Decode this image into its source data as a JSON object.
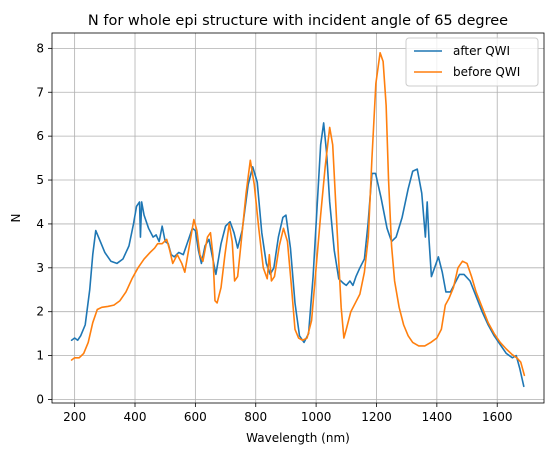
{
  "chart_data": {
    "type": "line",
    "title": "N for whole epi structure with incident angle of 65 degree",
    "xlabel": "Wavelength (nm)",
    "ylabel": "N",
    "xlim": [
      125,
      1755
    ],
    "ylim": [
      -0.08,
      8.35
    ],
    "xticks": [
      200,
      400,
      600,
      800,
      1000,
      1200,
      1400,
      1600
    ],
    "yticks": [
      0,
      1,
      2,
      3,
      4,
      5,
      6,
      7,
      8
    ],
    "grid": true,
    "legend_position": "top-right",
    "colors": {
      "after": "#1f77b4",
      "before": "#ff7f0e"
    },
    "series": [
      {
        "name": "after QWI",
        "color": "#1f77b4",
        "points": [
          [
            190,
            1.35
          ],
          [
            200,
            1.4
          ],
          [
            210,
            1.35
          ],
          [
            220,
            1.45
          ],
          [
            235,
            1.7
          ],
          [
            250,
            2.5
          ],
          [
            260,
            3.3
          ],
          [
            270,
            3.85
          ],
          [
            285,
            3.6
          ],
          [
            300,
            3.35
          ],
          [
            320,
            3.15
          ],
          [
            340,
            3.1
          ],
          [
            360,
            3.2
          ],
          [
            380,
            3.5
          ],
          [
            395,
            4.0
          ],
          [
            405,
            4.4
          ],
          [
            415,
            4.5
          ],
          [
            418,
            3.7
          ],
          [
            422,
            4.5
          ],
          [
            430,
            4.2
          ],
          [
            445,
            3.9
          ],
          [
            460,
            3.7
          ],
          [
            470,
            3.75
          ],
          [
            480,
            3.6
          ],
          [
            490,
            3.95
          ],
          [
            500,
            3.6
          ],
          [
            510,
            3.55
          ],
          [
            520,
            3.3
          ],
          [
            530,
            3.25
          ],
          [
            545,
            3.35
          ],
          [
            560,
            3.3
          ],
          [
            575,
            3.6
          ],
          [
            590,
            3.9
          ],
          [
            600,
            3.85
          ],
          [
            610,
            3.4
          ],
          [
            620,
            3.1
          ],
          [
            632,
            3.5
          ],
          [
            645,
            3.65
          ],
          [
            655,
            3.3
          ],
          [
            668,
            2.85
          ],
          [
            685,
            3.55
          ],
          [
            700,
            3.95
          ],
          [
            715,
            4.05
          ],
          [
            728,
            3.8
          ],
          [
            740,
            3.45
          ],
          [
            755,
            3.85
          ],
          [
            775,
            4.9
          ],
          [
            790,
            5.3
          ],
          [
            805,
            4.95
          ],
          [
            820,
            3.8
          ],
          [
            835,
            3.1
          ],
          [
            848,
            2.85
          ],
          [
            860,
            3.0
          ],
          [
            875,
            3.7
          ],
          [
            890,
            4.15
          ],
          [
            900,
            4.2
          ],
          [
            915,
            3.45
          ],
          [
            930,
            2.2
          ],
          [
            945,
            1.45
          ],
          [
            960,
            1.3
          ],
          [
            975,
            1.5
          ],
          [
            990,
            2.8
          ],
          [
            1005,
            4.6
          ],
          [
            1015,
            5.8
          ],
          [
            1025,
            6.3
          ],
          [
            1035,
            5.6
          ],
          [
            1045,
            4.5
          ],
          [
            1060,
            3.4
          ],
          [
            1075,
            2.75
          ],
          [
            1090,
            2.65
          ],
          [
            1100,
            2.6
          ],
          [
            1112,
            2.7
          ],
          [
            1122,
            2.6
          ],
          [
            1132,
            2.8
          ],
          [
            1145,
            3.0
          ],
          [
            1160,
            3.2
          ],
          [
            1172,
            4.0
          ],
          [
            1185,
            5.15
          ],
          [
            1197,
            5.15
          ],
          [
            1215,
            4.6
          ],
          [
            1235,
            3.9
          ],
          [
            1250,
            3.6
          ],
          [
            1265,
            3.7
          ],
          [
            1285,
            4.15
          ],
          [
            1305,
            4.8
          ],
          [
            1320,
            5.2
          ],
          [
            1335,
            5.25
          ],
          [
            1350,
            4.7
          ],
          [
            1362,
            3.7
          ],
          [
            1368,
            4.5
          ],
          [
            1374,
            3.65
          ],
          [
            1382,
            2.8
          ],
          [
            1395,
            3.05
          ],
          [
            1405,
            3.25
          ],
          [
            1418,
            2.9
          ],
          [
            1430,
            2.45
          ],
          [
            1445,
            2.45
          ],
          [
            1460,
            2.65
          ],
          [
            1475,
            2.85
          ],
          [
            1490,
            2.85
          ],
          [
            1510,
            2.7
          ],
          [
            1530,
            2.35
          ],
          [
            1550,
            2.0
          ],
          [
            1570,
            1.7
          ],
          [
            1590,
            1.45
          ],
          [
            1610,
            1.25
          ],
          [
            1630,
            1.05
          ],
          [
            1650,
            0.95
          ],
          [
            1663,
            1.0
          ],
          [
            1675,
            0.7
          ],
          [
            1688,
            0.3
          ]
        ]
      },
      {
        "name": "before QWI",
        "color": "#ff7f0e",
        "points": [
          [
            190,
            0.9
          ],
          [
            200,
            0.95
          ],
          [
            215,
            0.95
          ],
          [
            230,
            1.05
          ],
          [
            245,
            1.3
          ],
          [
            260,
            1.75
          ],
          [
            275,
            2.05
          ],
          [
            290,
            2.1
          ],
          [
            310,
            2.12
          ],
          [
            330,
            2.15
          ],
          [
            350,
            2.25
          ],
          [
            370,
            2.45
          ],
          [
            390,
            2.75
          ],
          [
            410,
            3.0
          ],
          [
            430,
            3.2
          ],
          [
            450,
            3.35
          ],
          [
            465,
            3.45
          ],
          [
            475,
            3.55
          ],
          [
            490,
            3.55
          ],
          [
            505,
            3.65
          ],
          [
            515,
            3.4
          ],
          [
            525,
            3.1
          ],
          [
            540,
            3.3
          ],
          [
            555,
            3.1
          ],
          [
            565,
            2.9
          ],
          [
            580,
            3.5
          ],
          [
            595,
            4.1
          ],
          [
            605,
            3.85
          ],
          [
            615,
            3.3
          ],
          [
            625,
            3.15
          ],
          [
            640,
            3.7
          ],
          [
            650,
            3.8
          ],
          [
            658,
            3.3
          ],
          [
            665,
            2.25
          ],
          [
            672,
            2.2
          ],
          [
            685,
            2.55
          ],
          [
            698,
            3.3
          ],
          [
            712,
            4.0
          ],
          [
            722,
            3.6
          ],
          [
            730,
            2.7
          ],
          [
            740,
            2.8
          ],
          [
            752,
            3.6
          ],
          [
            768,
            4.7
          ],
          [
            782,
            5.45
          ],
          [
            795,
            4.9
          ],
          [
            810,
            3.9
          ],
          [
            825,
            3.0
          ],
          [
            838,
            2.75
          ],
          [
            845,
            3.3
          ],
          [
            852,
            2.7
          ],
          [
            862,
            2.8
          ],
          [
            878,
            3.5
          ],
          [
            892,
            3.9
          ],
          [
            905,
            3.6
          ],
          [
            918,
            2.6
          ],
          [
            930,
            1.6
          ],
          [
            942,
            1.4
          ],
          [
            955,
            1.35
          ],
          [
            970,
            1.4
          ],
          [
            985,
            1.8
          ],
          [
            1000,
            3.0
          ],
          [
            1015,
            4.2
          ],
          [
            1030,
            5.3
          ],
          [
            1045,
            6.2
          ],
          [
            1055,
            5.8
          ],
          [
            1070,
            3.8
          ],
          [
            1083,
            2.1
          ],
          [
            1092,
            1.4
          ],
          [
            1100,
            1.6
          ],
          [
            1115,
            2.0
          ],
          [
            1130,
            2.2
          ],
          [
            1145,
            2.4
          ],
          [
            1160,
            2.9
          ],
          [
            1173,
            3.7
          ],
          [
            1185,
            5.5
          ],
          [
            1198,
            7.2
          ],
          [
            1212,
            7.9
          ],
          [
            1222,
            7.7
          ],
          [
            1232,
            6.7
          ],
          [
            1240,
            5.0
          ],
          [
            1250,
            3.5
          ],
          [
            1260,
            2.7
          ],
          [
            1275,
            2.1
          ],
          [
            1290,
            1.7
          ],
          [
            1305,
            1.45
          ],
          [
            1320,
            1.3
          ],
          [
            1340,
            1.22
          ],
          [
            1360,
            1.22
          ],
          [
            1380,
            1.3
          ],
          [
            1400,
            1.4
          ],
          [
            1415,
            1.6
          ],
          [
            1428,
            2.15
          ],
          [
            1440,
            2.3
          ],
          [
            1455,
            2.55
          ],
          [
            1470,
            3.0
          ],
          [
            1485,
            3.15
          ],
          [
            1500,
            3.1
          ],
          [
            1515,
            2.8
          ],
          [
            1530,
            2.45
          ],
          [
            1550,
            2.1
          ],
          [
            1570,
            1.75
          ],
          [
            1590,
            1.5
          ],
          [
            1610,
            1.3
          ],
          [
            1630,
            1.15
          ],
          [
            1650,
            1.02
          ],
          [
            1665,
            0.95
          ],
          [
            1678,
            0.85
          ],
          [
            1690,
            0.55
          ]
        ]
      }
    ]
  }
}
